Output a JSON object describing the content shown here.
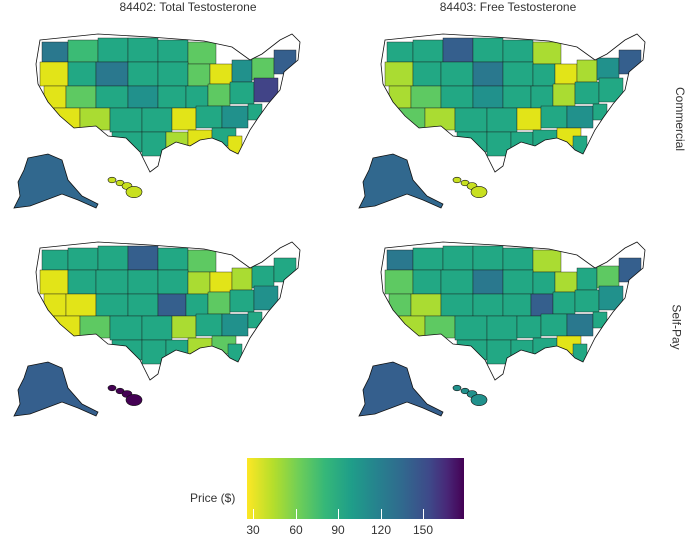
{
  "panels": {
    "col1_title": "84402: Total Testosterone",
    "col2_title": "84403: Free Testosterone",
    "row1_label": "Commercial",
    "row2_label": "Self-Pay"
  },
  "legend": {
    "title": "Price ($)",
    "ticks": [
      "30",
      "60",
      "90",
      "120",
      "150"
    ],
    "colormap": "viridis (reversed: low = yellow, high = purple)",
    "low_color": "#fde725",
    "high_color": "#440154"
  }
}
